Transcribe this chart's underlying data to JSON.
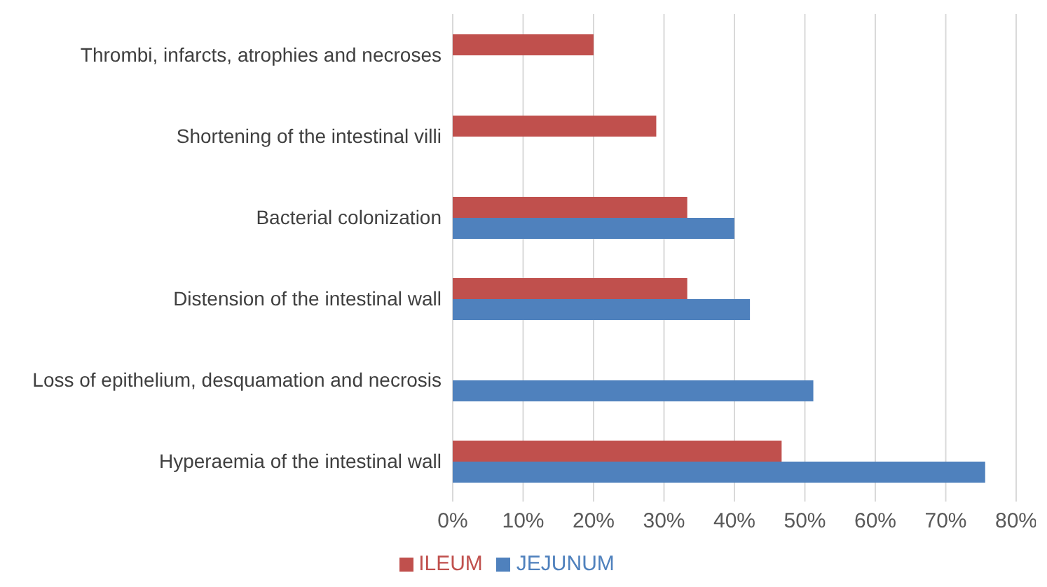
{
  "chart_data": {
    "type": "bar",
    "orientation": "horizontal",
    "categories": [
      "Thrombi, infarcts, atrophies and necroses",
      "Shortening of the intestinal villi",
      "Bacterial colonization",
      "Distension of the intestinal wall",
      "Loss of epithelium, desquamation and necrosis",
      "Hyperaemia of the intestinal wall"
    ],
    "series": [
      {
        "name": "ILEUM",
        "color": "#c0504d",
        "values": [
          20,
          28.9,
          33.3,
          33.3,
          null,
          46.7
        ]
      },
      {
        "name": "JEJUNUM",
        "color": "#4f81bd",
        "values": [
          null,
          null,
          40,
          42.2,
          51.2,
          75.6
        ]
      }
    ],
    "xlim": [
      0,
      80
    ],
    "xticks": [
      {
        "value": 0,
        "label": "0%"
      },
      {
        "value": 10,
        "label": "10%"
      },
      {
        "value": 20,
        "label": "20%"
      },
      {
        "value": 30,
        "label": "30%"
      },
      {
        "value": 40,
        "label": "40%"
      },
      {
        "value": 50,
        "label": "50%"
      },
      {
        "value": 60,
        "label": "60%"
      },
      {
        "value": 70,
        "label": "70%"
      },
      {
        "value": 80,
        "label": "80%"
      }
    ],
    "grid": "x",
    "legend": "bottom"
  }
}
